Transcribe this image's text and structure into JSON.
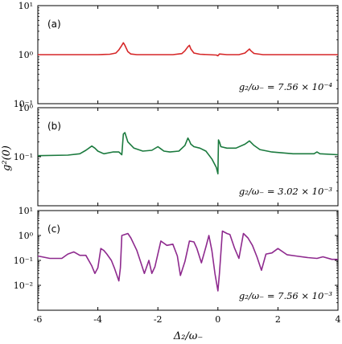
{
  "figure": {
    "xlabel": "Δ₂/ω₋",
    "ylabel": "g²(0)"
  },
  "chart_data": [
    {
      "type": "line",
      "panel": "(a)",
      "annotation": "g₂/ω₋ = 7.56 × 10⁻⁴",
      "color": "#d62728",
      "xlim": [
        -6,
        4
      ],
      "ylim_log10": [
        -1,
        1
      ],
      "y_ticks": [
        "10¹",
        "10⁰",
        "10⁻¹"
      ],
      "x_ticks": [
        "-6",
        "-4",
        "-2",
        "0",
        "2",
        "4"
      ],
      "series": [
        {
          "x": [
            -6,
            -4,
            -3.6,
            -3.4,
            -3.3,
            -3.2,
            -3.15,
            -3.1,
            -3.0,
            -2.9,
            -2.7,
            -2.2,
            -1.5,
            -1.2,
            -1.1,
            -1.0,
            -0.95,
            -0.9,
            -0.8,
            -0.6,
            -0.3,
            -0.05,
            0.0,
            0.05,
            0.3,
            0.7,
            0.9,
            1.0,
            1.05,
            1.1,
            1.2,
            1.5,
            2.5,
            4
          ],
          "y": [
            1.0,
            1.0,
            1.02,
            1.08,
            1.25,
            1.55,
            1.75,
            1.55,
            1.15,
            1.03,
            1.0,
            1.0,
            1.0,
            1.05,
            1.2,
            1.45,
            1.55,
            1.3,
            1.08,
            1.02,
            1.0,
            0.98,
            0.95,
            1.03,
            1.0,
            1.0,
            1.08,
            1.22,
            1.3,
            1.2,
            1.06,
            1.0,
            1.0,
            1.0
          ]
        }
      ]
    },
    {
      "type": "line",
      "panel": "(b)",
      "annotation": "g₂/ω₋ = 3.02 × 10⁻³",
      "color": "#1b7a3e",
      "xlim": [
        -6,
        4
      ],
      "ylim_log10": [
        -1,
        1
      ],
      "y_ticks": [
        "10⁰",
        "10⁻¹"
      ],
      "x_ticks": [
        "-6",
        "-4",
        "-2",
        "0",
        "2",
        "4"
      ],
      "series": [
        {
          "x": [
            -6,
            -5,
            -4.6,
            -4.4,
            -4.2,
            -4.1,
            -4.0,
            -3.8,
            -3.5,
            -3.3,
            -3.2,
            -3.15,
            -3.1,
            -3.0,
            -2.8,
            -2.5,
            -2.2,
            -2.0,
            -1.9,
            -1.8,
            -1.6,
            -1.3,
            -1.1,
            -1.0,
            -0.95,
            -0.9,
            -0.8,
            -0.6,
            -0.4,
            -0.2,
            -0.05,
            0.0,
            0.02,
            0.05,
            0.1,
            0.3,
            0.6,
            0.9,
            1.05,
            1.2,
            1.4,
            1.8,
            2.5,
            3.2,
            3.3,
            3.4,
            4
          ],
          "y": [
            1.05,
            1.08,
            1.15,
            1.35,
            1.65,
            1.5,
            1.3,
            1.15,
            1.25,
            1.25,
            1.1,
            2.9,
            3.1,
            2.0,
            1.5,
            1.3,
            1.35,
            1.6,
            1.45,
            1.3,
            1.25,
            1.3,
            1.7,
            2.4,
            2.1,
            1.8,
            1.6,
            1.5,
            1.3,
            0.9,
            0.6,
            0.45,
            2.2,
            2.0,
            1.6,
            1.5,
            1.5,
            1.8,
            2.1,
            1.7,
            1.4,
            1.25,
            1.15,
            1.15,
            1.25,
            1.15,
            1.1
          ]
        }
      ]
    },
    {
      "type": "line",
      "panel": "(c)",
      "annotation": "g₂/ω₋ = 7.56 × 10⁻³",
      "color": "#8e2a8e",
      "xlim": [
        -6,
        4
      ],
      "ylim_log10": [
        -2,
        2
      ],
      "y_ticks": [
        "10¹",
        "10⁰",
        "10⁻¹",
        "10⁻²"
      ],
      "x_ticks": [
        "-6",
        "-4",
        "-2",
        "0",
        "2",
        "4"
      ],
      "series": [
        {
          "x": [
            -6,
            -5.6,
            -5.2,
            -5.0,
            -4.8,
            -4.6,
            -4.4,
            -4.2,
            -4.1,
            -4.0,
            -3.9,
            -3.8,
            -3.7,
            -3.55,
            -3.45,
            -3.3,
            -3.25,
            -3.2,
            -3.0,
            -2.9,
            -2.7,
            -2.55,
            -2.45,
            -2.3,
            -2.2,
            -2.1,
            -1.9,
            -1.7,
            -1.5,
            -1.35,
            -1.25,
            -1.1,
            -0.95,
            -0.8,
            -0.7,
            -0.55,
            -0.4,
            -0.3,
            -0.2,
            -0.1,
            0.0,
            0.05,
            0.15,
            0.3,
            0.4,
            0.55,
            0.7,
            0.85,
            1.0,
            1.15,
            1.3,
            1.45,
            1.6,
            1.8,
            2.0,
            2.3,
            2.6,
            3.0,
            3.3,
            3.5,
            3.8,
            4.0
          ],
          "y": [
            1.5,
            1.2,
            1.2,
            1.8,
            2.2,
            1.6,
            1.6,
            0.6,
            0.3,
            0.5,
            3.0,
            2.5,
            1.8,
            1.0,
            0.5,
            0.15,
            0.5,
            10,
            12,
            8,
            2.5,
            0.7,
            0.3,
            1.0,
            0.3,
            0.55,
            6,
            4,
            4.5,
            1.5,
            0.25,
            0.9,
            6,
            5.5,
            3.0,
            0.8,
            3.5,
            10,
            2.5,
            0.3,
            0.06,
            0.3,
            15,
            12,
            11,
            3.2,
            1.2,
            12,
            8,
            4,
            1.4,
            0.4,
            1.8,
            2.0,
            3.0,
            1.7,
            1.5,
            1.3,
            1.2,
            1.4,
            1.1,
            1.1
          ]
        }
      ]
    }
  ]
}
